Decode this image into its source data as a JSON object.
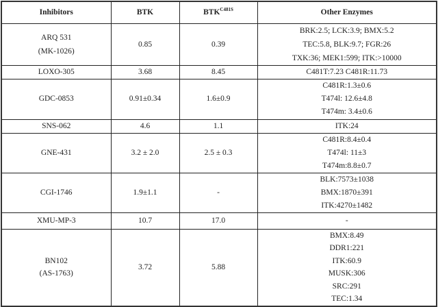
{
  "table": {
    "headers": {
      "inhibitors": "Inhibitors",
      "btk": "BTK",
      "btk_mutant_base": "BTK",
      "btk_mutant_sup": "C481S",
      "other": "Other Enzymes"
    },
    "rows": [
      {
        "inhibitor": [
          "ARQ 531",
          "(MK-1026)"
        ],
        "btk": "0.85",
        "btk_c481s": "0.39",
        "other": [
          "BRK:2.5; LCK:3.9; BMX:5.2",
          "TEC:5.8, BLK:9.7; FGR:26",
          "TXK:36; MEK1:599; ITK:>10000"
        ]
      },
      {
        "inhibitor": [
          "LOXO-305"
        ],
        "btk": "3.68",
        "btk_c481s": "8.45",
        "other": [
          "C481T:7.23 C481R:11.73"
        ]
      },
      {
        "inhibitor": [
          "GDC-0853"
        ],
        "btk": "0.91±0.34",
        "btk_c481s": "1.6±0.9",
        "other": [
          "C481R:1.3±0.6",
          "T474l: 12.6±4.8",
          "T474m: 3.4±0.6"
        ]
      },
      {
        "inhibitor": [
          "SNS-062"
        ],
        "btk": "4.6",
        "btk_c481s": "1.1",
        "other": [
          "ITK:24"
        ]
      },
      {
        "inhibitor": [
          "GNE-431"
        ],
        "btk": "3.2 ± 2.0",
        "btk_c481s": "2.5 ± 0.3",
        "other": [
          "C481R:8.4±0.4",
          "T474l: 11±3",
          "T474m:8.8±0.7"
        ]
      },
      {
        "inhibitor": [
          "CGI-1746"
        ],
        "btk": "1.9±1.1",
        "btk_c481s": "-",
        "other": [
          "BLK:7573±1038",
          "BMX:1870±391",
          "ITK:4270±1482"
        ]
      },
      {
        "inhibitor": [
          "XMU-MP-3"
        ],
        "btk": "10.7",
        "btk_c481s": "17.0",
        "other": [
          "-"
        ]
      },
      {
        "inhibitor": [
          "BN102",
          "(AS-1763)"
        ],
        "btk": "3.72",
        "btk_c481s": "5.88",
        "other": [
          "BMX:8.49",
          "DDR1:221",
          "ITK:60.9",
          "MUSK:306",
          "SRC:291",
          "TEC:1.34"
        ]
      }
    ]
  }
}
